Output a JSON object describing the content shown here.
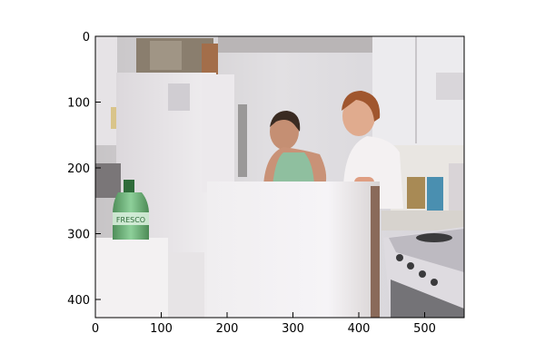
{
  "figure": {
    "x_ticks": [
      "0",
      "100",
      "200",
      "300",
      "400",
      "500"
    ],
    "y_ticks": [
      "0",
      "100",
      "200",
      "300",
      "400"
    ],
    "bottle_label": "FRESCO"
  }
}
